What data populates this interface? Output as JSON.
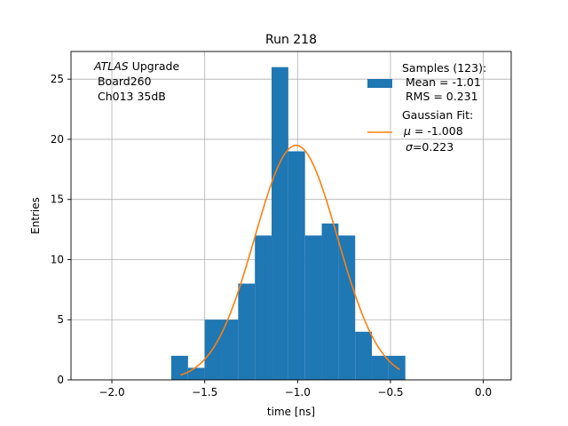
{
  "chart_data": {
    "type": "bar",
    "title": "Run 218",
    "xlabel": "time [ns]",
    "ylabel": "Entries",
    "xlim": [
      -2.22,
      0.15
    ],
    "ylim": [
      0,
      27.3
    ],
    "grid": true,
    "xticks": [
      -2.0,
      -1.5,
      -1.0,
      -0.5,
      0.0
    ],
    "xtick_labels": [
      "−2.0",
      "−1.5",
      "−1.0",
      "−0.5",
      "0.0"
    ],
    "yticks": [
      0,
      5,
      10,
      15,
      20,
      25
    ],
    "ytick_labels": [
      "0",
      "5",
      "10",
      "15",
      "20",
      "25"
    ],
    "histogram": {
      "color": "#1f77b4",
      "bin_edges": [
        -1.68,
        -1.59,
        -1.5,
        -1.41,
        -1.32,
        -1.23,
        -1.14,
        -1.05,
        -0.96,
        -0.87,
        -0.78,
        -0.69,
        -0.6,
        -0.51,
        -0.42
      ],
      "counts": [
        2,
        1,
        5,
        5,
        8,
        12,
        26,
        19,
        12,
        13,
        12,
        4,
        2,
        2
      ]
    },
    "fit": {
      "color": "#ff7f0e",
      "mu": -1.008,
      "sigma": 0.223,
      "amplitude": 19.5,
      "x_range": [
        -1.63,
        -0.45
      ]
    },
    "annotation": {
      "line1_italic": "ATLAS",
      "line1_rest": " Upgrade",
      "line2": " Board260",
      "line3": " Ch013 35dB"
    },
    "legend": {
      "position": "top-right",
      "samples_lines": [
        "Samples (123):",
        " Mean = -1.01",
        " RMS = 0.231"
      ],
      "fit_lines": [
        "Gaussian Fit:",
        " = -1.008",
        "=0.223"
      ],
      "mu_symbol": "μ",
      "sigma_symbol": "σ"
    }
  }
}
